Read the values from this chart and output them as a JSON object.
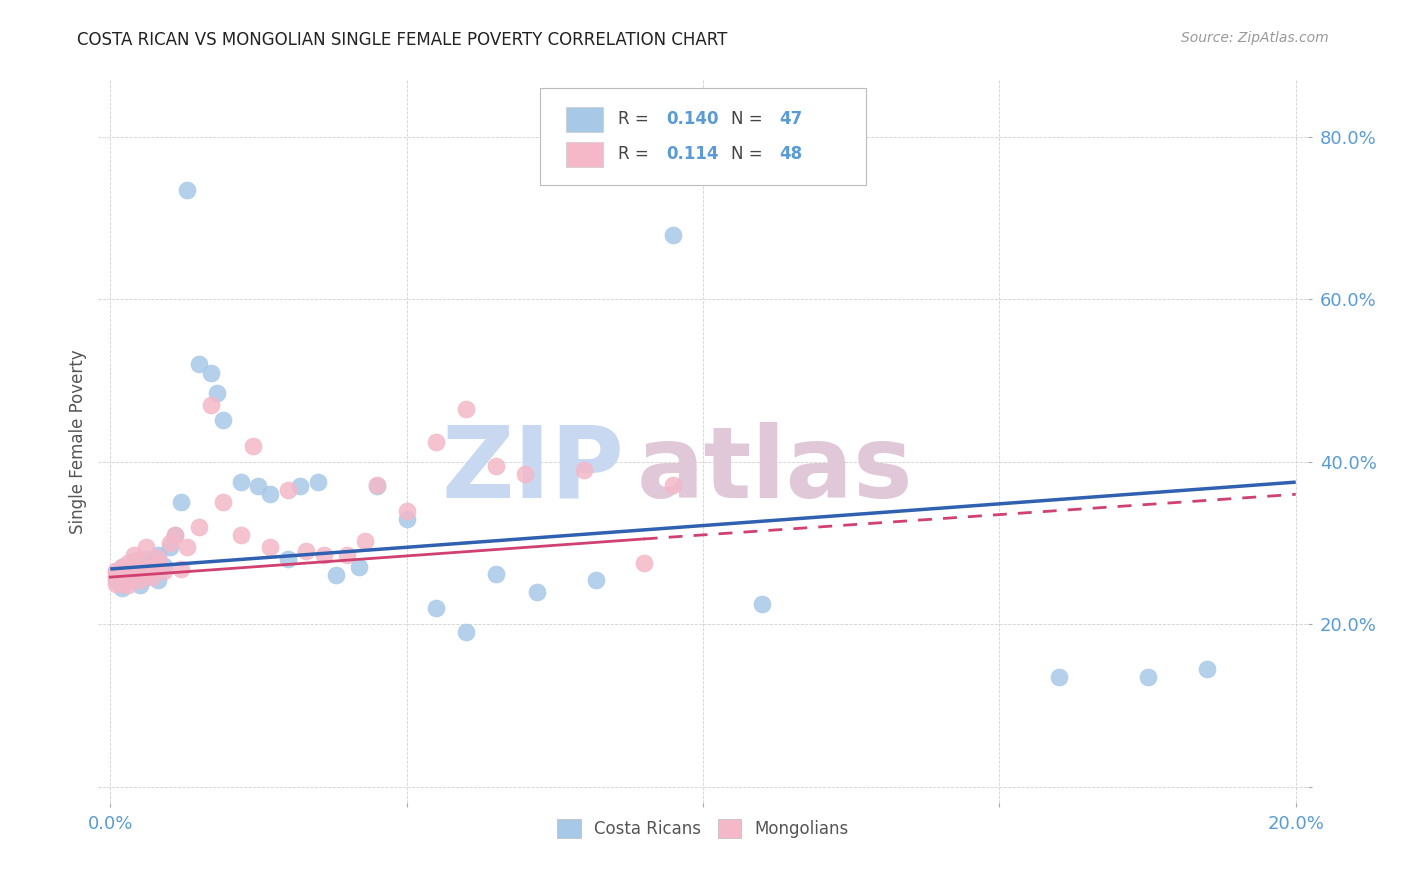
{
  "title": "COSTA RICAN VS MONGOLIAN SINGLE FEMALE POVERTY CORRELATION CHART",
  "source": "Source: ZipAtlas.com",
  "ylabel_label": "Single Female Poverty",
  "xlim": [
    -0.002,
    0.202
  ],
  "ylim": [
    -0.02,
    0.87
  ],
  "x_ticks": [
    0.0,
    0.05,
    0.1,
    0.15,
    0.2
  ],
  "x_tick_labels": [
    "0.0%",
    "",
    "",
    "",
    "20.0%"
  ],
  "y_ticks": [
    0.0,
    0.2,
    0.4,
    0.6,
    0.8
  ],
  "y_tick_labels": [
    "",
    "20.0%",
    "40.0%",
    "60.0%",
    "80.0%"
  ],
  "blue_color": "#a8c8e8",
  "pink_color": "#f4b8c8",
  "trendline_blue": "#3060b0",
  "trendline_pink": "#d04070",
  "watermark_zip_color": "#c8d8f0",
  "watermark_atlas_color": "#e0c8d8",
  "cr_trend_x0": 0.0,
  "cr_trend_y0": 0.268,
  "cr_trend_x1": 0.2,
  "cr_trend_y1": 0.375,
  "mn_trend_x0": 0.0,
  "mn_trend_y0": 0.258,
  "mn_trend_x1_solid": 0.09,
  "mn_trend_y1_solid": 0.305,
  "mn_trend_x1_dash": 0.2,
  "mn_trend_y1_dash": 0.36,
  "costa_ricans_x": [
    0.001,
    0.001,
    0.002,
    0.002,
    0.002,
    0.003,
    0.003,
    0.004,
    0.004,
    0.005,
    0.005,
    0.005,
    0.006,
    0.006,
    0.007,
    0.007,
    0.008,
    0.008,
    0.009,
    0.01,
    0.011,
    0.012,
    0.013,
    0.015,
    0.017,
    0.018,
    0.019,
    0.022,
    0.025,
    0.027,
    0.03,
    0.032,
    0.035,
    0.038,
    0.042,
    0.045,
    0.05,
    0.055,
    0.06,
    0.065,
    0.072,
    0.082,
    0.095,
    0.11,
    0.16,
    0.175,
    0.185
  ],
  "costa_ricans_y": [
    0.265,
    0.255,
    0.245,
    0.27,
    0.25,
    0.26,
    0.268,
    0.255,
    0.278,
    0.248,
    0.262,
    0.27,
    0.28,
    0.258,
    0.275,
    0.265,
    0.285,
    0.255,
    0.272,
    0.295,
    0.31,
    0.35,
    0.735,
    0.52,
    0.51,
    0.485,
    0.452,
    0.375,
    0.37,
    0.36,
    0.28,
    0.37,
    0.375,
    0.26,
    0.27,
    0.37,
    0.33,
    0.22,
    0.19,
    0.262,
    0.24,
    0.255,
    0.68,
    0.225,
    0.135,
    0.135,
    0.145
  ],
  "mongolians_x": [
    0.001,
    0.001,
    0.001,
    0.001,
    0.002,
    0.002,
    0.002,
    0.002,
    0.003,
    0.003,
    0.003,
    0.004,
    0.004,
    0.004,
    0.005,
    0.005,
    0.005,
    0.006,
    0.006,
    0.007,
    0.007,
    0.008,
    0.008,
    0.009,
    0.01,
    0.011,
    0.012,
    0.013,
    0.015,
    0.017,
    0.019,
    0.022,
    0.024,
    0.027,
    0.03,
    0.033,
    0.036,
    0.04,
    0.043,
    0.045,
    0.05,
    0.055,
    0.06,
    0.065,
    0.07,
    0.08,
    0.09,
    0.095
  ],
  "mongolians_y": [
    0.258,
    0.265,
    0.25,
    0.26,
    0.27,
    0.25,
    0.262,
    0.268,
    0.255,
    0.275,
    0.248,
    0.272,
    0.26,
    0.285,
    0.255,
    0.265,
    0.28,
    0.262,
    0.295,
    0.258,
    0.27,
    0.275,
    0.282,
    0.265,
    0.3,
    0.31,
    0.268,
    0.295,
    0.32,
    0.47,
    0.35,
    0.31,
    0.42,
    0.295,
    0.365,
    0.29,
    0.285,
    0.285,
    0.302,
    0.372,
    0.34,
    0.425,
    0.465,
    0.395,
    0.385,
    0.39,
    0.275,
    0.372
  ]
}
